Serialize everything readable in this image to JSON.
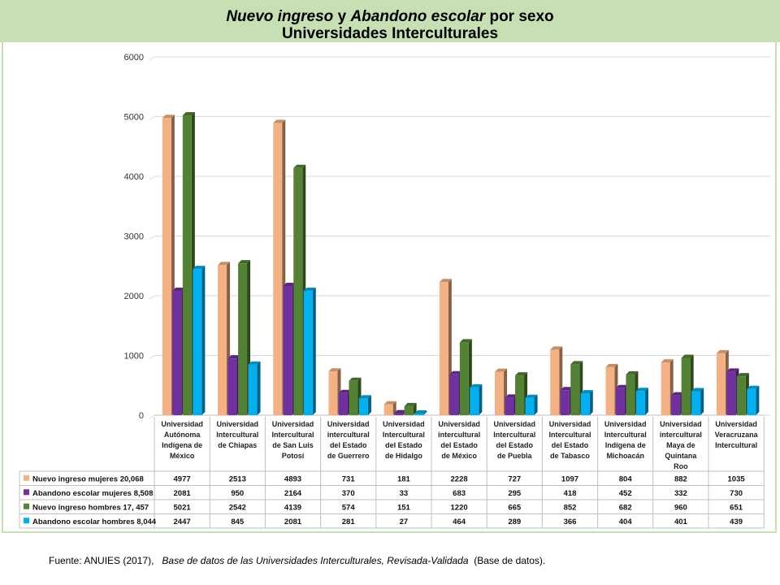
{
  "title": {
    "part1": "Nuevo ingreso",
    "part2": "y",
    "part3": "Abandono escolar",
    "part4": "por sexo",
    "line2": "Universidades Interculturales"
  },
  "source": {
    "prefix": "Fuente: ANUIES (2017),",
    "italic": "Base de datos de las Universidades  Interculturales, Revisada-Validada",
    "suffix": "(Base de datos)."
  },
  "chart_data": {
    "type": "bar",
    "ylim": [
      0,
      6000
    ],
    "yticks": [
      0,
      1000,
      2000,
      3000,
      4000,
      5000,
      6000
    ],
    "grid": true,
    "categories": [
      [
        "Universidad",
        "Autónoma",
        "Indígena de",
        "México"
      ],
      [
        "Universidad",
        "Intercultural",
        "de Chiapas"
      ],
      [
        "Universidad",
        "Intercultural",
        "de San Luis",
        "Potosí"
      ],
      [
        "Universidad",
        "intercultural",
        "del Estado",
        "de Guerrero"
      ],
      [
        "Universidad",
        "Intercultural",
        "del Estado",
        "de Hidalgo"
      ],
      [
        "Universidad",
        "intercultural",
        "del Estado",
        "de México"
      ],
      [
        "Universidad",
        "Intercultural",
        "del Estado",
        "de Puebla"
      ],
      [
        "Universidad",
        "Intercultural",
        "del Estado",
        "de Tabasco"
      ],
      [
        "Universidad",
        "Intercultural",
        "Indígena de",
        "Michoacán"
      ],
      [
        "Universidad",
        "intercultural",
        "Maya de",
        "Quintana",
        "Roo"
      ],
      [
        "Universidad",
        "Veracruzana",
        "Intercultural"
      ]
    ],
    "series": [
      {
        "name": "Nuevo ingreso mujeres 20,068",
        "color": "#f4b183",
        "values": [
          4977,
          2513,
          4893,
          731,
          181,
          2228,
          727,
          1097,
          804,
          882,
          1035
        ]
      },
      {
        "name": "Abandono escolar mujeres 8,508",
        "color": "#7030a0",
        "values": [
          2081,
          950,
          2164,
          370,
          33,
          683,
          295,
          418,
          452,
          332,
          730
        ]
      },
      {
        "name": "Nuevo ingreso hombres 17, 457",
        "color": "#548235",
        "values": [
          5021,
          2542,
          4139,
          574,
          151,
          1220,
          665,
          852,
          682,
          960,
          651
        ]
      },
      {
        "name": "Abandono escolar hombres 8,044",
        "color": "#00b0f0",
        "values": [
          2447,
          845,
          2081,
          281,
          27,
          464,
          289,
          366,
          404,
          401,
          439
        ]
      }
    ]
  }
}
